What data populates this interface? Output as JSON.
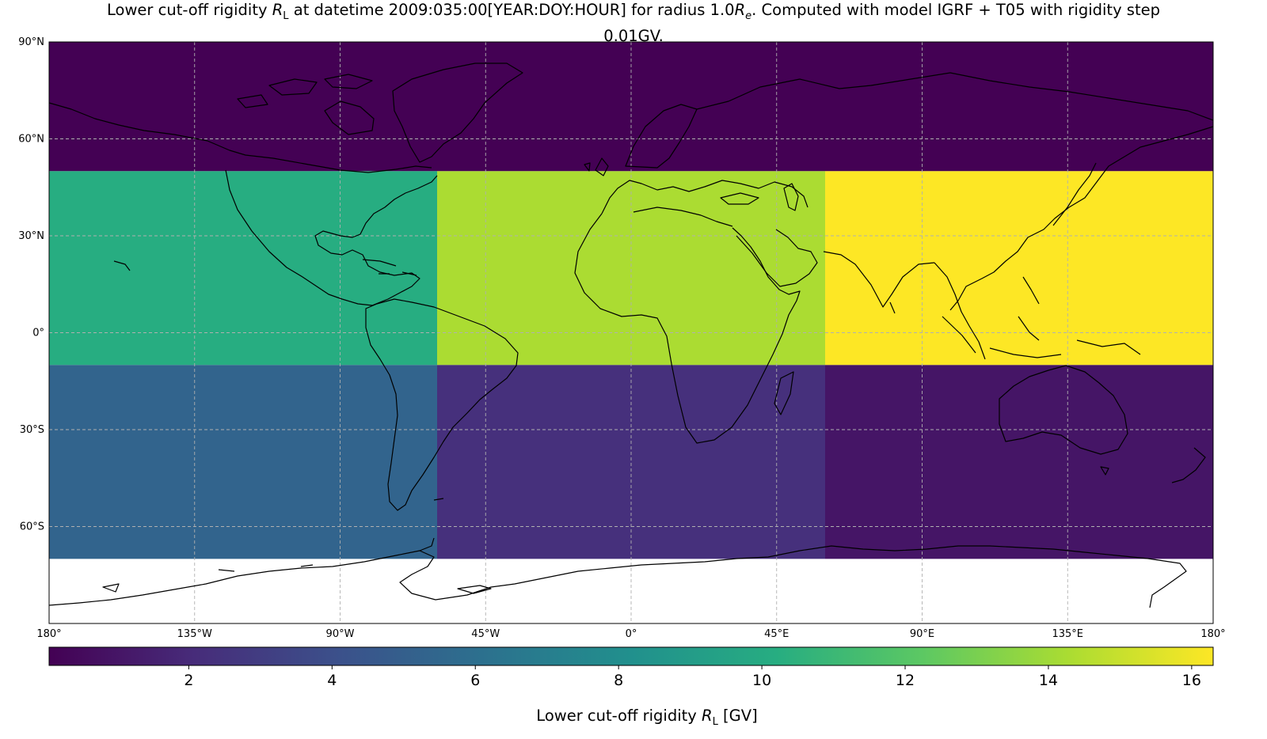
{
  "title": {
    "line1_pre": "Lower cut-off rigidity ",
    "line1_sym": "R",
    "line1_sub": "L",
    "line1_mid": " at datetime 2009:035:00[YEAR:DOY:HOUR] for radius 1.0",
    "line1_sym2": "R",
    "line1_sub2": "e",
    "line1_post": ". Computed with model IGRF + T05 with rigidity step",
    "line2": "0.01GV."
  },
  "chart_data": {
    "type": "heatmap",
    "projection": "PlateCarree",
    "xlim": [
      -180,
      180
    ],
    "ylim": [
      -90,
      90
    ],
    "grid": true,
    "lat_ticks": [
      {
        "value": 90,
        "label": "90°N"
      },
      {
        "value": 60,
        "label": "60°N"
      },
      {
        "value": 30,
        "label": "30°N"
      },
      {
        "value": 0,
        "label": "0°"
      },
      {
        "value": -30,
        "label": "30°S"
      },
      {
        "value": -60,
        "label": "60°S"
      }
    ],
    "lon_ticks": [
      {
        "value": -180,
        "label": "180°"
      },
      {
        "value": -135,
        "label": "135°W"
      },
      {
        "value": -90,
        "label": "90°W"
      },
      {
        "value": -45,
        "label": "45°W"
      },
      {
        "value": 0,
        "label": "0°"
      },
      {
        "value": 45,
        "label": "45°E"
      },
      {
        "value": 90,
        "label": "90°E"
      },
      {
        "value": 135,
        "label": "135°E"
      },
      {
        "value": 180,
        "label": "180°"
      }
    ],
    "lon_edges": [
      -180,
      -60,
      60,
      180
    ],
    "lat_edges": [
      50,
      -10,
      -70
    ],
    "cells": [
      {
        "lat_range": [
          50,
          90
        ],
        "lon_range": [
          -180,
          180
        ],
        "value": 0.05
      },
      {
        "lat_range": [
          -10,
          50
        ],
        "lon_range": [
          -180,
          -60
        ],
        "value": 10.2
      },
      {
        "lat_range": [
          -10,
          50
        ],
        "lon_range": [
          -60,
          60
        ],
        "value": 14.3
      },
      {
        "lat_range": [
          -10,
          50
        ],
        "lon_range": [
          60,
          180
        ],
        "value": 16.3
      },
      {
        "lat_range": [
          -70,
          -10
        ],
        "lon_range": [
          -180,
          -60
        ],
        "value": 5.3
      },
      {
        "lat_range": [
          -70,
          -10
        ],
        "lon_range": [
          -60,
          60
        ],
        "value": 2.3
      },
      {
        "lat_range": [
          -70,
          -10
        ],
        "lon_range": [
          60,
          180
        ],
        "value": 1.0
      }
    ],
    "colorbar": {
      "colormap": "viridis",
      "vmin": 0.05,
      "vmax": 16.3,
      "ticks": [
        2,
        4,
        6,
        8,
        10,
        12,
        14,
        16
      ],
      "label_pre": "Lower cut-off rigidity ",
      "label_sym": "R",
      "label_sub": "L",
      "label_post": " [GV]"
    }
  },
  "colors": {
    "grid": "#b0b0b0",
    "coastline": "#000000",
    "frame": "#000000"
  }
}
